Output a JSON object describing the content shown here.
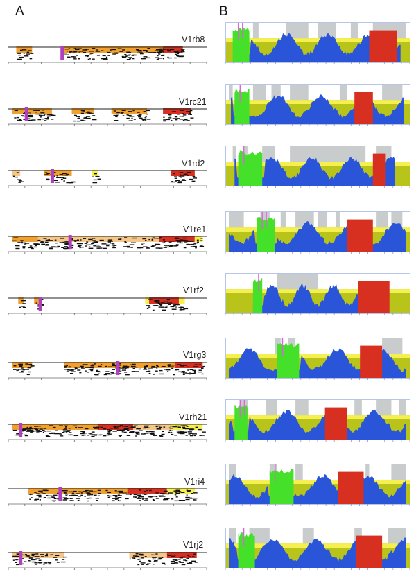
{
  "figure": {
    "panel_a_label": "A",
    "panel_b_label": "B"
  },
  "rows": [
    {
      "name": "V1rb8"
    },
    {
      "name": "V1rc21"
    },
    {
      "name": "V1rd2"
    },
    {
      "name": "V1re1"
    },
    {
      "name": "V1rf2"
    },
    {
      "name": "V1rg3"
    },
    {
      "name": "V1rh21"
    },
    {
      "name": "V1ri4"
    },
    {
      "name": "V1rj2"
    }
  ],
  "colors": {
    "orange": "#f0a030",
    "light_orange": "#f5c88a",
    "yellow": "#f5f050",
    "red": "#d83020",
    "magenta": "#b040c0",
    "blue": "#2a55d8",
    "green": "#44e02a",
    "olive": "#b8c41a",
    "gray": "#c8cccc",
    "pink": "#e060e0"
  }
}
